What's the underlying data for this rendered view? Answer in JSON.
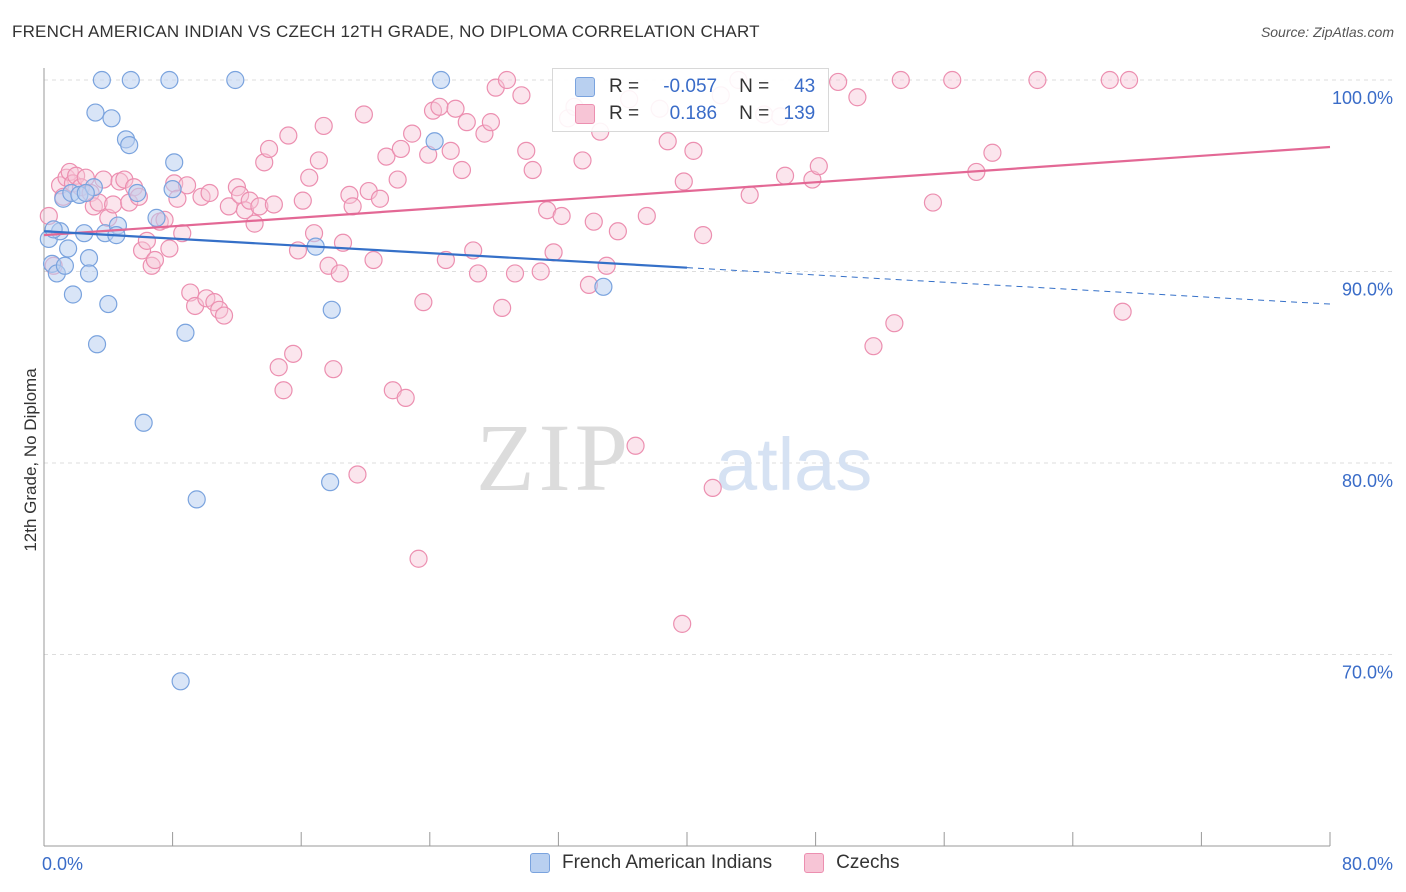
{
  "title": "FRENCH AMERICAN INDIAN VS CZECH 12TH GRADE, NO DIPLOMA CORRELATION CHART",
  "source": "Source: ZipAtlas.com",
  "watermark": {
    "zip": "ZIP",
    "atlas": "atlas"
  },
  "colors": {
    "blue": "#7aa3de",
    "blue_fill": "#b9d0f0",
    "blue_line": "#3570c8",
    "pink": "#ec8fb0",
    "pink_fill": "#f7c5d6",
    "pink_line": "#e36895",
    "axis_label": "#3a6cc8"
  },
  "legend": {
    "rows": [
      {
        "r_label": "R =",
        "r_value": "-0.057",
        "n_label": "N =",
        "n_value": "43"
      },
      {
        "r_label": "R =",
        "r_value": "0.186",
        "n_label": "N =",
        "n_value": "139"
      }
    ]
  },
  "bottom_legend": [
    "French American Indians",
    "Czechs"
  ],
  "chart_data": {
    "type": "scatter",
    "title": "FRENCH AMERICAN INDIAN VS CZECH 12TH GRADE, NO DIPLOMA CORRELATION CHART",
    "xlabel": "",
    "ylabel": "12th Grade, No Diploma",
    "xlim": [
      0,
      80
    ],
    "ylim": [
      60,
      101.5
    ],
    "x_tick_labels": [
      "0.0%",
      "80.0%"
    ],
    "y_ticks": [
      70,
      80,
      90,
      100
    ],
    "y_tick_labels": [
      "70.0%",
      "80.0%",
      "90.0%",
      "100.0%"
    ],
    "series": [
      {
        "name": "French American Indians",
        "R": -0.057,
        "N": 43,
        "trend": {
          "x0": 0,
          "y0": 92.1,
          "x1": 40,
          "y1": 90.2,
          "dashed_to_x": 80,
          "dashed_to_y": 88.3
        },
        "points": [
          [
            0.3,
            91.7
          ],
          [
            0.5,
            90.4
          ],
          [
            0.8,
            89.9
          ],
          [
            1.0,
            92.1
          ],
          [
            1.2,
            93.8
          ],
          [
            1.5,
            91.2
          ],
          [
            1.7,
            94.1
          ],
          [
            1.8,
            88.8
          ],
          [
            2.2,
            94.0
          ],
          [
            2.5,
            92.0
          ],
          [
            2.8,
            90.7
          ],
          [
            2.8,
            89.9
          ],
          [
            3.1,
            94.4
          ],
          [
            3.2,
            98.3
          ],
          [
            3.3,
            86.2
          ],
          [
            3.6,
            100.0
          ],
          [
            3.8,
            92.0
          ],
          [
            4.0,
            88.3
          ],
          [
            4.2,
            98.0
          ],
          [
            4.6,
            92.4
          ],
          [
            5.1,
            96.9
          ],
          [
            5.3,
            96.6
          ],
          [
            5.4,
            100.0
          ],
          [
            5.8,
            94.1
          ],
          [
            6.2,
            82.1
          ],
          [
            7.0,
            92.8
          ],
          [
            7.8,
            100.0
          ],
          [
            8.0,
            94.3
          ],
          [
            8.1,
            95.7
          ],
          [
            8.5,
            68.6
          ],
          [
            8.8,
            86.8
          ],
          [
            9.5,
            78.1
          ],
          [
            11.9,
            100.0
          ],
          [
            16.9,
            91.3
          ],
          [
            17.8,
            79.0
          ],
          [
            17.9,
            88.0
          ],
          [
            24.3,
            96.8
          ],
          [
            24.7,
            100.0
          ],
          [
            34.8,
            89.2
          ],
          [
            1.3,
            90.3
          ],
          [
            2.6,
            94.1
          ],
          [
            0.6,
            92.2
          ],
          [
            4.5,
            91.9
          ]
        ]
      },
      {
        "name": "Czechs",
        "R": 0.186,
        "N": 139,
        "trend": {
          "x0": 0,
          "y0": 91.9,
          "x1": 80,
          "y1": 96.5
        },
        "points": [
          [
            0.3,
            92.9
          ],
          [
            0.6,
            90.3
          ],
          [
            1.0,
            94.5
          ],
          [
            1.2,
            93.9
          ],
          [
            1.4,
            94.9
          ],
          [
            1.6,
            95.2
          ],
          [
            1.8,
            94.6
          ],
          [
            2.0,
            95.0
          ],
          [
            2.3,
            94.4
          ],
          [
            2.6,
            94.9
          ],
          [
            2.9,
            94.1
          ],
          [
            3.1,
            93.4
          ],
          [
            3.4,
            93.6
          ],
          [
            3.7,
            94.8
          ],
          [
            4.0,
            92.8
          ],
          [
            4.3,
            93.5
          ],
          [
            4.7,
            94.7
          ],
          [
            5.0,
            94.8
          ],
          [
            5.3,
            93.6
          ],
          [
            5.6,
            94.4
          ],
          [
            5.9,
            93.9
          ],
          [
            6.1,
            91.1
          ],
          [
            6.4,
            91.6
          ],
          [
            6.7,
            90.3
          ],
          [
            6.9,
            90.6
          ],
          [
            7.2,
            92.6
          ],
          [
            7.5,
            92.7
          ],
          [
            7.8,
            91.2
          ],
          [
            8.1,
            94.6
          ],
          [
            8.3,
            93.8
          ],
          [
            8.6,
            92.0
          ],
          [
            8.9,
            94.5
          ],
          [
            9.1,
            88.9
          ],
          [
            9.4,
            88.2
          ],
          [
            9.8,
            93.9
          ],
          [
            10.1,
            88.6
          ],
          [
            10.3,
            94.1
          ],
          [
            10.6,
            88.4
          ],
          [
            10.9,
            88.0
          ],
          [
            11.2,
            87.7
          ],
          [
            11.5,
            93.4
          ],
          [
            12.0,
            94.4
          ],
          [
            12.2,
            94.0
          ],
          [
            12.5,
            93.2
          ],
          [
            12.8,
            93.7
          ],
          [
            13.1,
            92.5
          ],
          [
            13.4,
            93.4
          ],
          [
            13.7,
            95.7
          ],
          [
            14.0,
            96.4
          ],
          [
            14.3,
            93.5
          ],
          [
            14.6,
            85.0
          ],
          [
            14.9,
            83.8
          ],
          [
            15.2,
            97.1
          ],
          [
            15.5,
            85.7
          ],
          [
            15.8,
            91.1
          ],
          [
            16.1,
            93.7
          ],
          [
            16.5,
            94.9
          ],
          [
            16.8,
            92.0
          ],
          [
            17.1,
            95.8
          ],
          [
            17.4,
            97.6
          ],
          [
            17.7,
            90.3
          ],
          [
            18.0,
            84.9
          ],
          [
            18.4,
            89.9
          ],
          [
            18.6,
            91.5
          ],
          [
            19.0,
            94.0
          ],
          [
            19.2,
            93.4
          ],
          [
            19.5,
            79.4
          ],
          [
            19.9,
            98.2
          ],
          [
            20.2,
            94.2
          ],
          [
            20.5,
            90.6
          ],
          [
            20.9,
            93.8
          ],
          [
            21.3,
            96.0
          ],
          [
            21.7,
            83.8
          ],
          [
            22.0,
            94.8
          ],
          [
            22.2,
            96.4
          ],
          [
            22.5,
            83.4
          ],
          [
            22.9,
            97.2
          ],
          [
            23.3,
            75.0
          ],
          [
            23.6,
            88.4
          ],
          [
            23.9,
            96.1
          ],
          [
            24.2,
            98.4
          ],
          [
            24.6,
            98.6
          ],
          [
            25.0,
            90.6
          ],
          [
            25.3,
            96.3
          ],
          [
            25.6,
            98.5
          ],
          [
            26.0,
            95.3
          ],
          [
            26.3,
            97.8
          ],
          [
            26.7,
            91.1
          ],
          [
            27.0,
            89.9
          ],
          [
            27.4,
            97.2
          ],
          [
            27.8,
            97.8
          ],
          [
            28.1,
            99.6
          ],
          [
            28.5,
            88.1
          ],
          [
            28.8,
            100.0
          ],
          [
            29.3,
            89.9
          ],
          [
            29.7,
            99.2
          ],
          [
            30.0,
            96.3
          ],
          [
            30.4,
            95.3
          ],
          [
            30.9,
            90.0
          ],
          [
            31.3,
            93.2
          ],
          [
            31.7,
            91.0
          ],
          [
            32.2,
            92.9
          ],
          [
            32.6,
            98.0
          ],
          [
            33.0,
            98.6
          ],
          [
            33.5,
            95.8
          ],
          [
            33.9,
            89.3
          ],
          [
            34.2,
            92.6
          ],
          [
            34.6,
            97.3
          ],
          [
            35.0,
            90.3
          ],
          [
            35.7,
            92.1
          ],
          [
            36.4,
            99.0
          ],
          [
            36.8,
            80.9
          ],
          [
            37.5,
            92.9
          ],
          [
            38.3,
            98.5
          ],
          [
            38.8,
            96.8
          ],
          [
            39.7,
            71.6
          ],
          [
            39.8,
            94.7
          ],
          [
            40.4,
            96.3
          ],
          [
            41.0,
            91.9
          ],
          [
            41.6,
            78.7
          ],
          [
            42.1,
            99.2
          ],
          [
            43.2,
            100.0
          ],
          [
            43.9,
            94.0
          ],
          [
            44.8,
            98.2
          ],
          [
            45.8,
            98.1
          ],
          [
            46.1,
            95.0
          ],
          [
            47.8,
            94.8
          ],
          [
            48.2,
            95.5
          ],
          [
            49.4,
            99.9
          ],
          [
            50.6,
            99.1
          ],
          [
            51.6,
            86.1
          ],
          [
            52.9,
            87.3
          ],
          [
            53.3,
            100.0
          ],
          [
            55.3,
            93.6
          ],
          [
            56.5,
            100.0
          ],
          [
            58.0,
            95.2
          ],
          [
            59.0,
            96.2
          ],
          [
            61.8,
            100.0
          ],
          [
            66.3,
            100.0
          ],
          [
            67.1,
            87.9
          ],
          [
            67.5,
            100.0
          ]
        ]
      }
    ]
  }
}
